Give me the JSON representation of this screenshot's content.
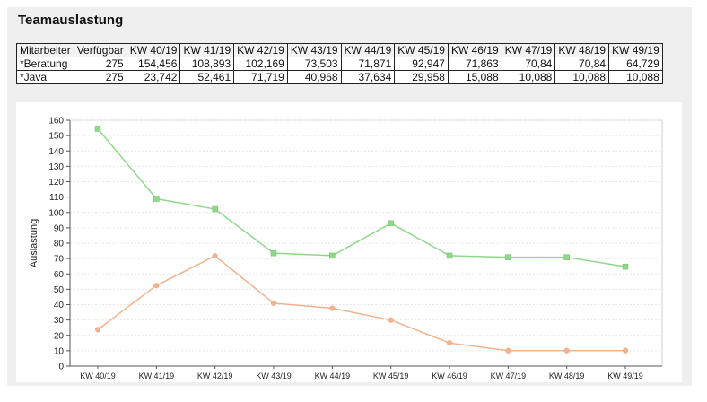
{
  "page": {
    "title": "Teamauslastung"
  },
  "table": {
    "headers": [
      "Mitarbeiter",
      "Verfügbar",
      "KW 40/19",
      "KW 41/19",
      "KW 42/19",
      "KW 43/19",
      "KW 44/19",
      "KW 45/19",
      "KW 46/19",
      "KW 47/19",
      "KW 48/19",
      "KW 49/19"
    ],
    "rows": [
      [
        "*Beratung",
        "275",
        "154,456",
        "108,893",
        "102,169",
        "73,503",
        "71,871",
        "92,947",
        "71,863",
        "70,84",
        "70,84",
        "64,729"
      ],
      [
        "*Java",
        "275",
        "23,742",
        "52,461",
        "71,719",
        "40,968",
        "37,634",
        "29,958",
        "15,088",
        "10,088",
        "10,088",
        "10,088"
      ]
    ]
  },
  "chart_data": {
    "type": "line",
    "categories": [
      "KW 40/19",
      "KW 41/19",
      "KW 42/19",
      "KW 43/19",
      "KW 44/19",
      "KW 45/19",
      "KW 46/19",
      "KW 47/19",
      "KW 48/19",
      "KW 49/19"
    ],
    "series": [
      {
        "color": "#8fd88a",
        "marker": "square",
        "values": [
          154.456,
          108.893,
          102.169,
          73.503,
          71.871,
          92.947,
          71.863,
          70.84,
          70.84,
          64.729
        ]
      },
      {
        "color": "#f2b48f",
        "marker": "circle",
        "values": [
          23.742,
          52.461,
          71.719,
          40.968,
          37.634,
          29.958,
          15.088,
          10.088,
          10.088,
          10.088
        ]
      }
    ],
    "ylabel": "Auslastung",
    "ylim": [
      0,
      160
    ],
    "yticks": [
      0,
      10,
      20,
      30,
      40,
      50,
      60,
      70,
      80,
      90,
      100,
      110,
      120,
      130,
      140,
      150,
      160
    ],
    "grid": true
  }
}
